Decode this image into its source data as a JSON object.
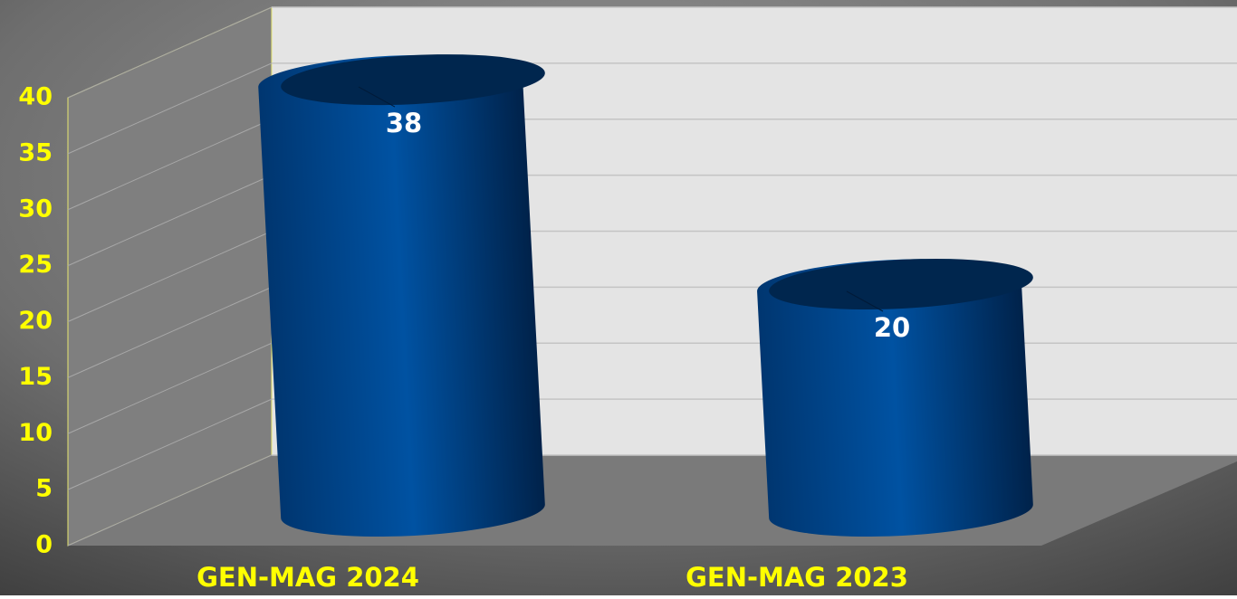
{
  "chart_data": {
    "type": "bar",
    "categories": [
      "GEN-MAG 2024",
      "GEN-MAG 2023"
    ],
    "values": [
      38,
      20
    ],
    "color": "#004a94",
    "ylim": [
      0,
      40
    ],
    "yticks": [
      0,
      5,
      10,
      15,
      20,
      25,
      30,
      35,
      40
    ],
    "grid": true
  }
}
